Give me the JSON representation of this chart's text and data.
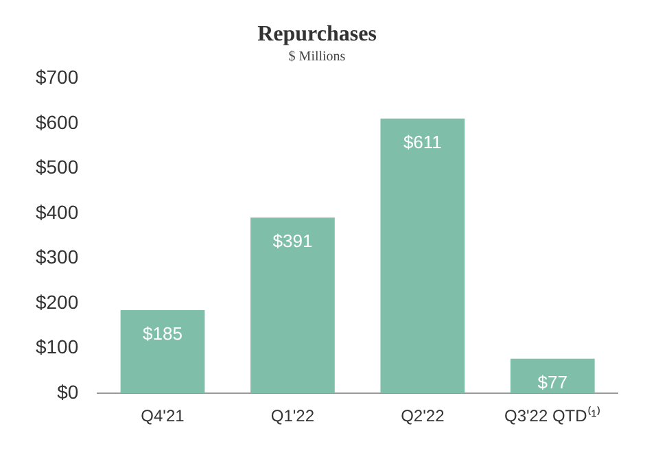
{
  "chart_data": {
    "type": "bar",
    "title": "Repurchases",
    "subtitle": "$ Millions",
    "categories": [
      "Q4'21",
      "Q1'22",
      "Q2'22",
      "Q3'22 QTD⁽¹⁾"
    ],
    "values": [
      185,
      391,
      611,
      77
    ],
    "value_labels": [
      "$185",
      "$391",
      "$611",
      "$77"
    ],
    "color": "#7fbfa9",
    "ylim": [
      0,
      700
    ],
    "yticks": [
      {
        "value": 0,
        "label": "$0"
      },
      {
        "value": 100,
        "label": "$100"
      },
      {
        "value": 200,
        "label": "$200"
      },
      {
        "value": 300,
        "label": "$300"
      },
      {
        "value": 400,
        "label": "$400"
      },
      {
        "value": 500,
        "label": "$500"
      },
      {
        "value": 600,
        "label": "$600"
      },
      {
        "value": 700,
        "label": "$700"
      }
    ],
    "grid": false,
    "legend": false
  }
}
